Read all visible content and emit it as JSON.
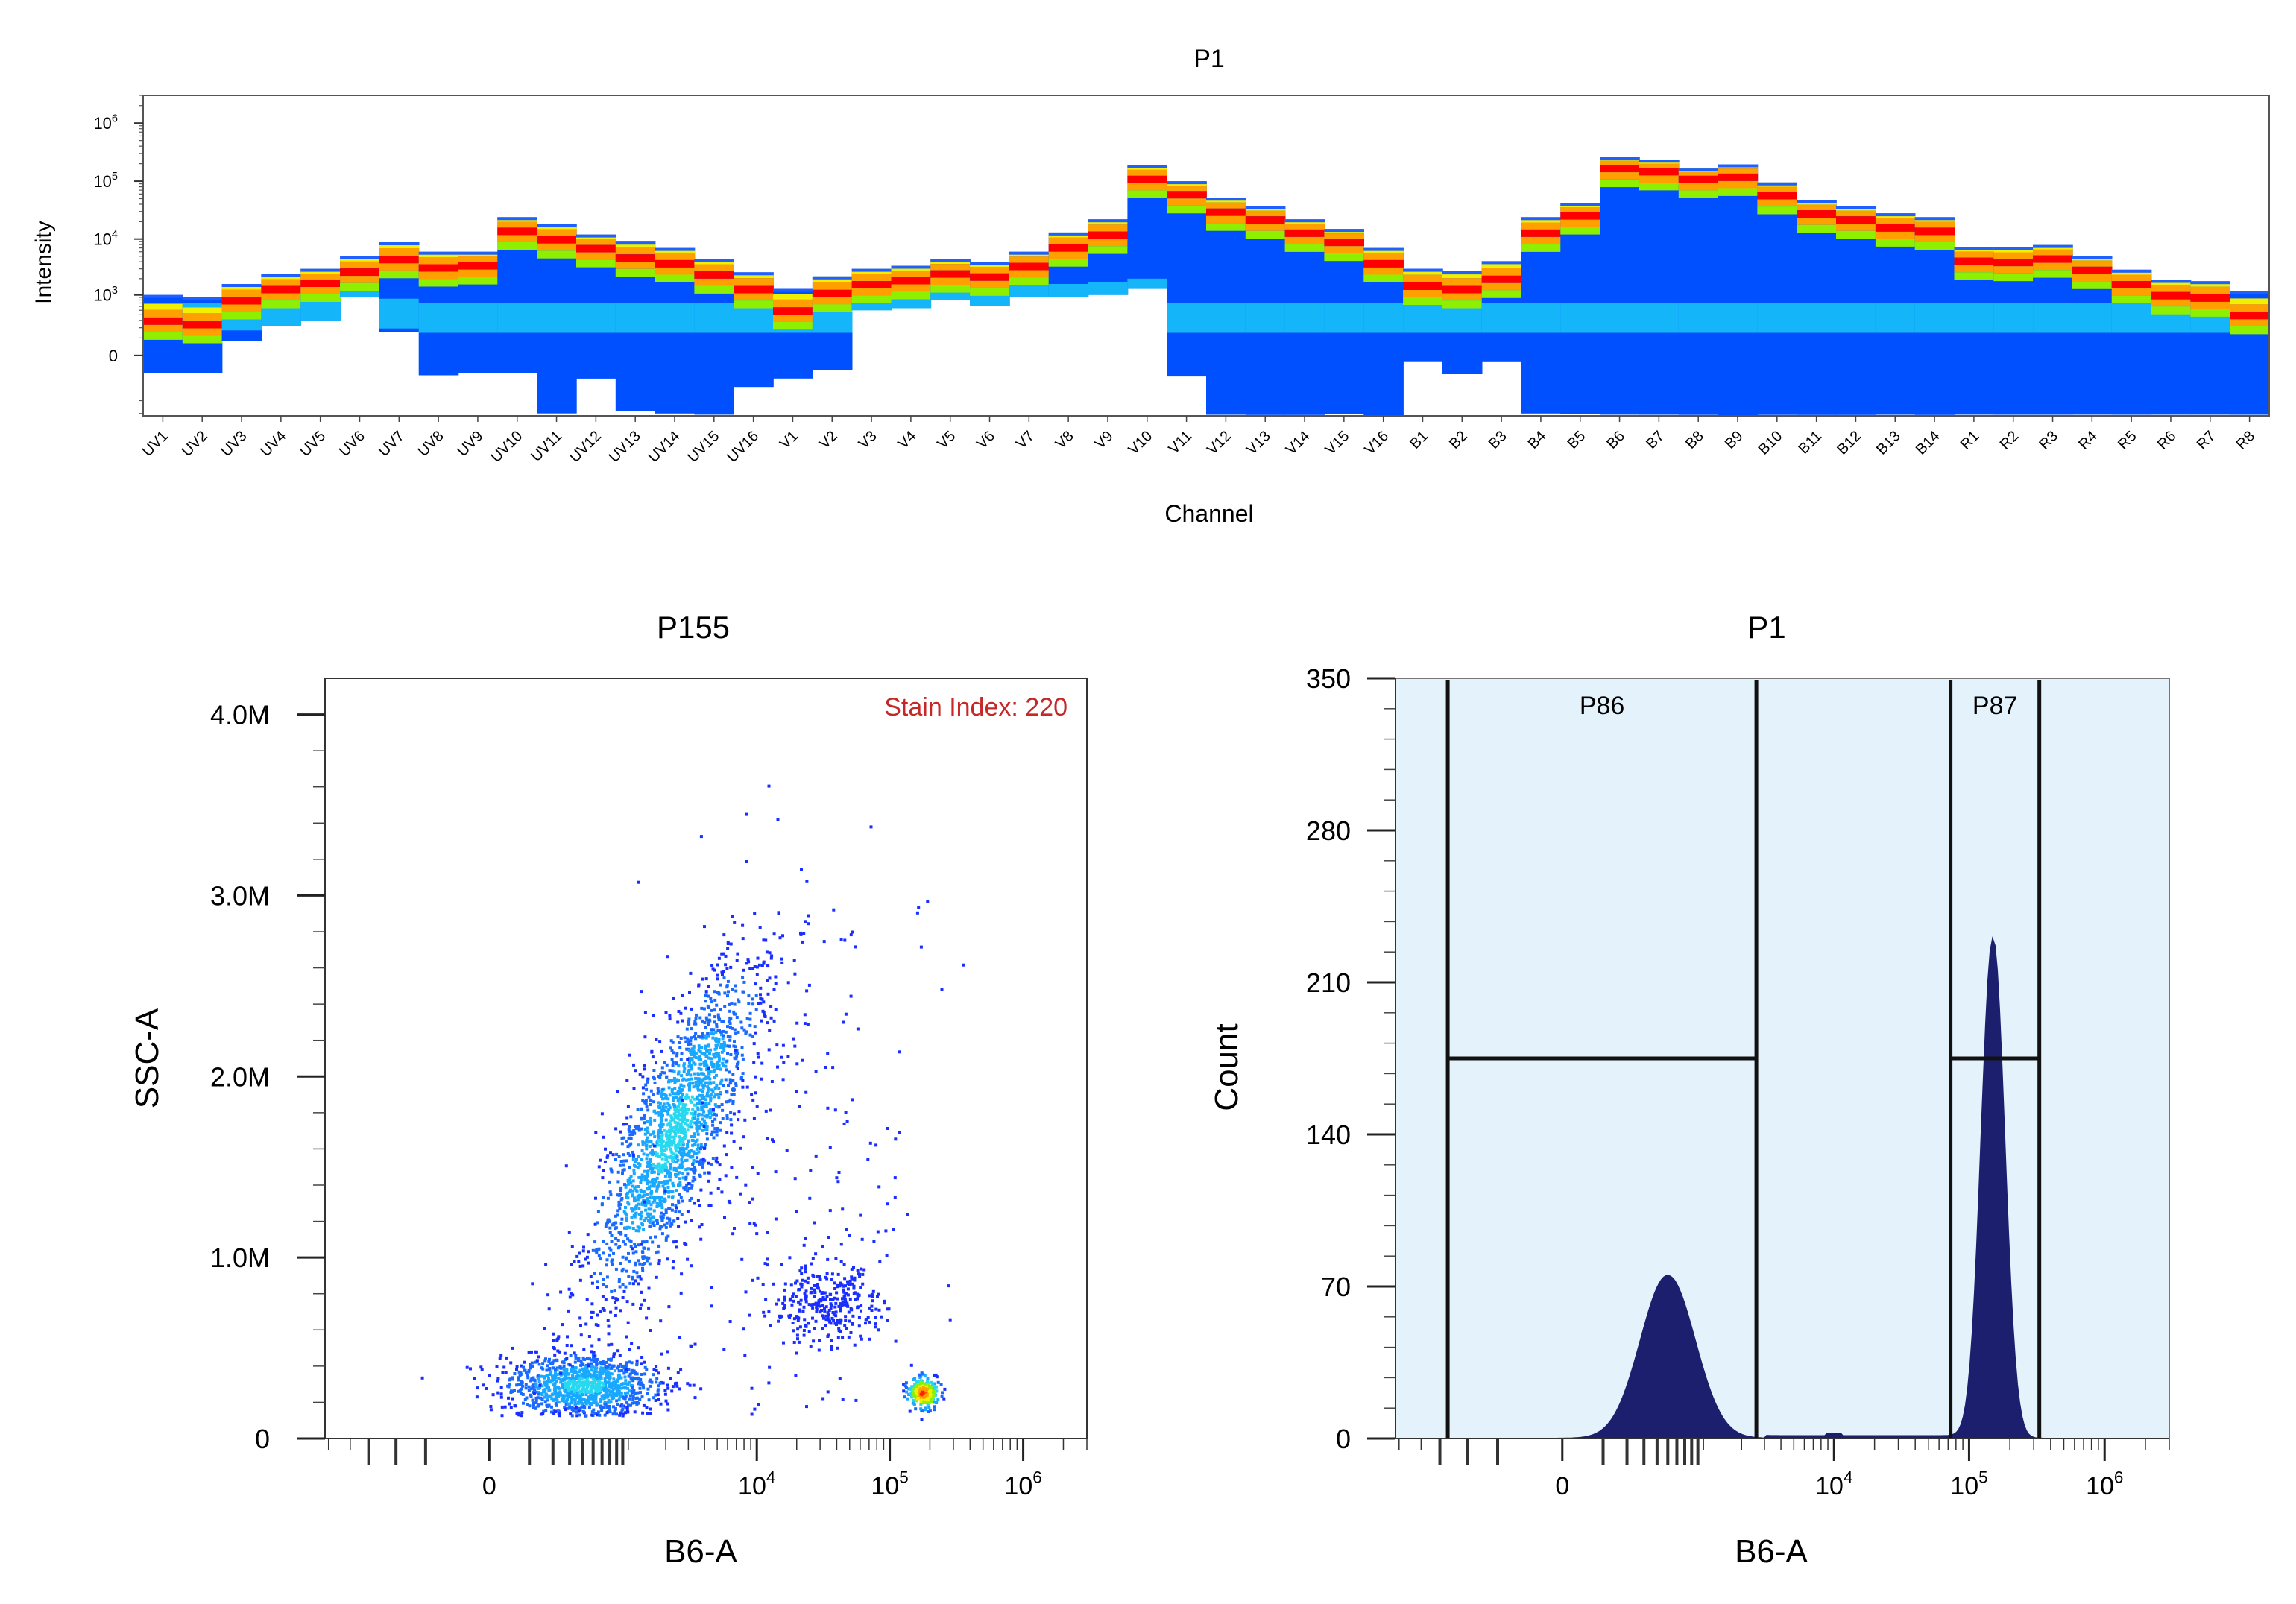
{
  "colors": {
    "spectrum_gradient": [
      "#1a1aff",
      "#0044ff",
      "#00a0ff",
      "#00e0ff",
      "#30e0b0",
      "#8ef000",
      "#f0f000",
      "#ffa000",
      "#ff2000",
      "#ff0000"
    ],
    "histogram_bg": "#e4f2fc",
    "histogram_fill": "#1c1f6e",
    "dot_color": "#1a2fff",
    "stain_index_color": "#c62828"
  },
  "chart_data": [
    {
      "type": "heatmap",
      "title": "P1",
      "xlabel": "Channel",
      "ylabel": "Intensity",
      "yscale": "log",
      "y_ticks": [
        "0",
        "10^3",
        "10^4",
        "10^5",
        "10^6"
      ],
      "ylim": [
        0,
        3000000
      ],
      "categories": [
        "UV1",
        "UV2",
        "UV3",
        "UV4",
        "UV5",
        "UV6",
        "UV7",
        "UV8",
        "UV9",
        "UV10",
        "UV11",
        "UV12",
        "UV13",
        "UV14",
        "UV15",
        "UV16",
        "V1",
        "V2",
        "V3",
        "V4",
        "V5",
        "V6",
        "V7",
        "V8",
        "V9",
        "V10",
        "V11",
        "V12",
        "V13",
        "V14",
        "V15",
        "V16",
        "B1",
        "B2",
        "B3",
        "B4",
        "B5",
        "B6",
        "B7",
        "B8",
        "B9",
        "B10",
        "B11",
        "B12",
        "B13",
        "B14",
        "R1",
        "R2",
        "R3",
        "R4",
        "R5",
        "R6",
        "R7",
        "R8"
      ],
      "series": [
        {
          "name": "",
          "stat": "top",
          "values": [
            1000,
            900,
            1600,
            2400,
            3000,
            5000,
            8800,
            6000,
            6000,
            24000,
            18000,
            12000,
            9000,
            7000,
            4500,
            2600,
            1300,
            2200,
            3000,
            3400,
            4500,
            4000,
            6000,
            13000,
            22000,
            190000,
            100000,
            52000,
            37000,
            22000,
            15000,
            7000,
            3000,
            2700,
            4100,
            24000,
            42000,
            260000,
            235000,
            165000,
            195000,
            95000,
            47000,
            37000,
            28000,
            24000,
            7300,
            7200,
            7900,
            5100,
            2900,
            1900,
            1800,
            1200
          ]
        },
        {
          "name": "",
          "stat": "peak",
          "values": [
            300,
            250,
            800,
            1300,
            1700,
            2700,
            4500,
            3200,
            3500,
            14000,
            10000,
            7000,
            4800,
            3800,
            2400,
            1300,
            500,
            1100,
            1600,
            1900,
            2500,
            2200,
            3400,
            7200,
            12000,
            110000,
            60000,
            30000,
            22000,
            13000,
            9000,
            3800,
            1500,
            1300,
            2000,
            13000,
            26000,
            170000,
            150000,
            110000,
            120000,
            58000,
            28000,
            22000,
            16000,
            14000,
            4200,
            4000,
            4600,
            2900,
            1600,
            1000,
            900,
            400
          ]
        },
        {
          "name": "",
          "stat": "bottom",
          "values": [
            -100,
            -100,
            80,
            220,
            300,
            900,
            150,
            -120,
            -100,
            -100,
            -900,
            -150,
            -800,
            -900,
            -950,
            -250,
            -150,
            -80,
            500,
            550,
            800,
            600,
            900,
            900,
            1000,
            1300,
            -130,
            -950,
            -960,
            -960,
            -930,
            -1000,
            -30,
            -110,
            -30,
            -900,
            -930,
            -950,
            -950,
            -960,
            -970,
            -960,
            -960,
            -960,
            -950,
            -960,
            -950,
            -950,
            -950,
            -950,
            -950,
            -950,
            -950,
            -950
          ]
        }
      ]
    },
    {
      "type": "scatter",
      "title": "P155",
      "xlabel": "B6-A",
      "ylabel": "SSC-A",
      "xscale": "biexponential",
      "x_ticks": [
        "0",
        "10^4",
        "10^5",
        "10^6"
      ],
      "y_ticks": [
        "0",
        "1.0M",
        "2.0M",
        "3.0M",
        "4.0M"
      ],
      "ylim": [
        0,
        4200000
      ],
      "annotation": "Stain Index: 220",
      "populations": [
        {
          "x_center": 400,
          "y_center": 300000,
          "count": 1100
        },
        {
          "x_center": 2300,
          "y_center": 1700000,
          "count": 1900
        },
        {
          "x_center": 33000,
          "y_center": 750000,
          "count": 320
        },
        {
          "x_center": 175000,
          "y_center": 260000,
          "count": 260
        },
        {
          "x_center": 15000,
          "y_center": 1500000,
          "count": 220
        }
      ]
    },
    {
      "type": "area",
      "title": "P1",
      "xlabel": "B6-A",
      "ylabel": "Count",
      "xscale": "biexponential",
      "x_ticks": [
        "0",
        "10^4",
        "10^5",
        "10^6"
      ],
      "y_ticks": [
        "0",
        "70",
        "140",
        "210",
        "280",
        "350"
      ],
      "ylim": [
        0,
        350
      ],
      "peaks": [
        {
          "x": 500,
          "count": 75
        },
        {
          "x": 150000,
          "count": 230
        }
      ],
      "gates": [
        {
          "name": "P86",
          "x_range": [
            -600,
            2600
          ],
          "bar_count": 175
        },
        {
          "name": "P87",
          "x_range": [
            73000,
            330000
          ],
          "bar_count": 175
        }
      ]
    }
  ],
  "panels": {
    "heatmap": {
      "title": "P1",
      "xlabel": "Channel",
      "ylabel": "Intensity"
    },
    "scatter": {
      "title": "P155",
      "xlabel": "B6-A",
      "ylabel": "SSC-A",
      "annotation": "Stain Index: 220"
    },
    "histogram": {
      "title": "P1",
      "xlabel": "B6-A",
      "ylabel": "Count",
      "gate_labels": [
        "P86",
        "P87"
      ]
    }
  }
}
